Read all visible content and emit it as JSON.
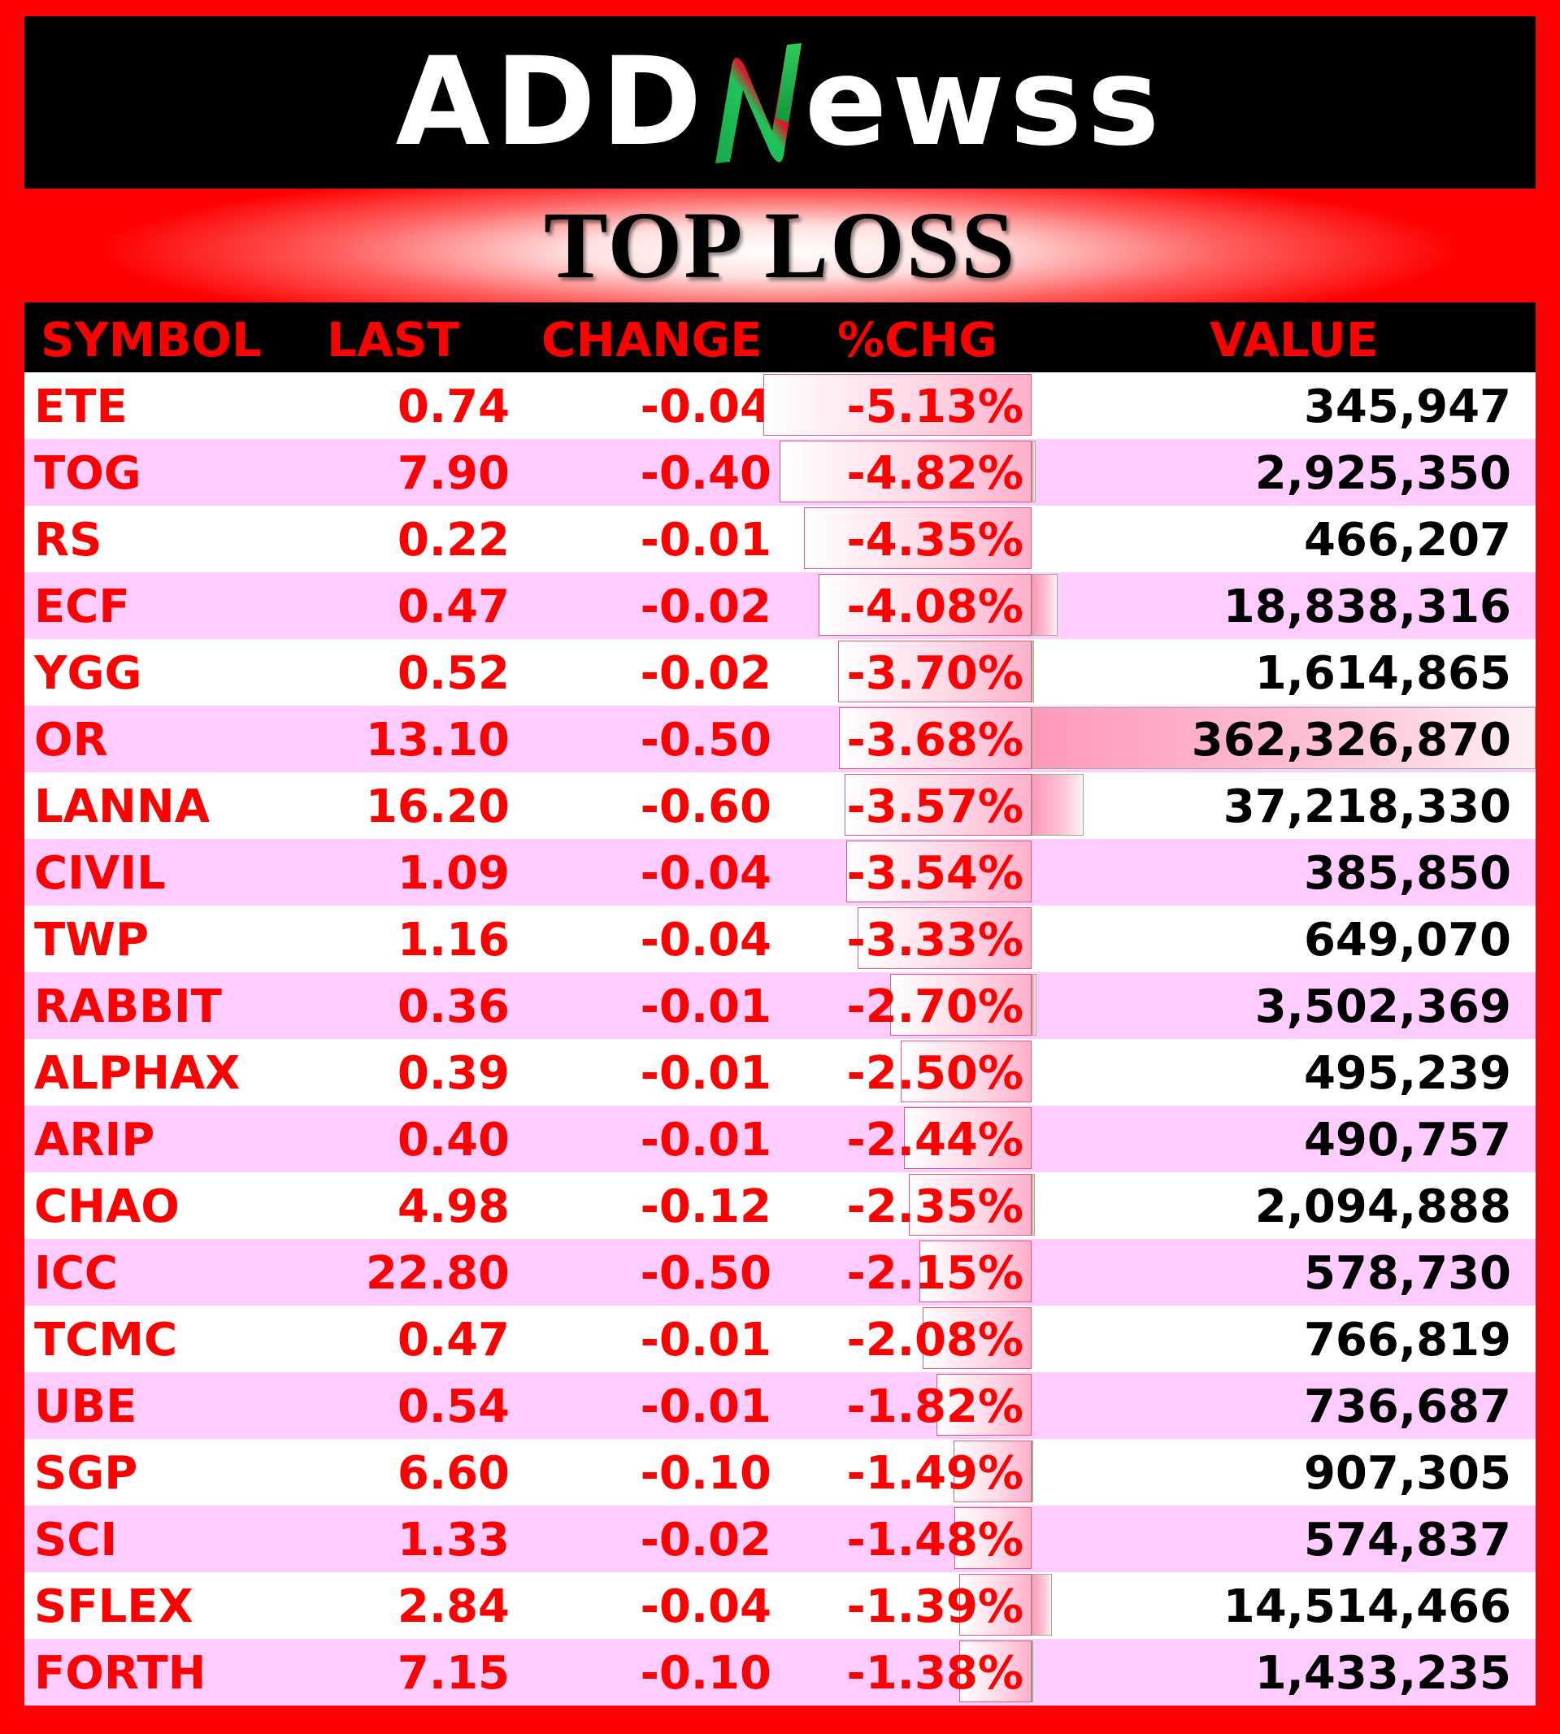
{
  "brand": {
    "logo_left": "ADD",
    "logo_right": "ewss"
  },
  "title": "TOP LOSS",
  "columns": {
    "symbol": "SYMBOL",
    "last": "LAST",
    "change": "CHANGE",
    "pct": "%CHG",
    "value": "VALUE"
  },
  "colors": {
    "frame": "#fe0000",
    "header": "#000000",
    "row_odd": "#ffffff",
    "row_even": "#ffccff",
    "loss_text": "#fe0000",
    "value_text": "#000000"
  },
  "rows": [
    {
      "symbol": "ETE",
      "last": "0.74",
      "change": "-0.04",
      "pct": "-5.13%",
      "value": "345,947",
      "pct_num": 5.13,
      "value_num": 345947
    },
    {
      "symbol": "TOG",
      "last": "7.90",
      "change": "-0.40",
      "pct": "-4.82%",
      "value": "2,925,350",
      "pct_num": 4.82,
      "value_num": 2925350
    },
    {
      "symbol": "RS",
      "last": "0.22",
      "change": "-0.01",
      "pct": "-4.35%",
      "value": "466,207",
      "pct_num": 4.35,
      "value_num": 466207
    },
    {
      "symbol": "ECF",
      "last": "0.47",
      "change": "-0.02",
      "pct": "-4.08%",
      "value": "18,838,316",
      "pct_num": 4.08,
      "value_num": 18838316
    },
    {
      "symbol": "YGG",
      "last": "0.52",
      "change": "-0.02",
      "pct": "-3.70%",
      "value": "1,614,865",
      "pct_num": 3.7,
      "value_num": 1614865
    },
    {
      "symbol": "OR",
      "last": "13.10",
      "change": "-0.50",
      "pct": "-3.68%",
      "value": "362,326,870",
      "pct_num": 3.68,
      "value_num": 362326870
    },
    {
      "symbol": "LANNA",
      "last": "16.20",
      "change": "-0.60",
      "pct": "-3.57%",
      "value": "37,218,330",
      "pct_num": 3.57,
      "value_num": 37218330
    },
    {
      "symbol": "CIVIL",
      "last": "1.09",
      "change": "-0.04",
      "pct": "-3.54%",
      "value": "385,850",
      "pct_num": 3.54,
      "value_num": 385850
    },
    {
      "symbol": "TWP",
      "last": "1.16",
      "change": "-0.04",
      "pct": "-3.33%",
      "value": "649,070",
      "pct_num": 3.33,
      "value_num": 649070
    },
    {
      "symbol": "RABBIT",
      "last": "0.36",
      "change": "-0.01",
      "pct": "-2.70%",
      "value": "3,502,369",
      "pct_num": 2.7,
      "value_num": 3502369
    },
    {
      "symbol": "ALPHAX",
      "last": "0.39",
      "change": "-0.01",
      "pct": "-2.50%",
      "value": "495,239",
      "pct_num": 2.5,
      "value_num": 495239
    },
    {
      "symbol": "ARIP",
      "last": "0.40",
      "change": "-0.01",
      "pct": "-2.44%",
      "value": "490,757",
      "pct_num": 2.44,
      "value_num": 490757
    },
    {
      "symbol": "CHAO",
      "last": "4.98",
      "change": "-0.12",
      "pct": "-2.35%",
      "value": "2,094,888",
      "pct_num": 2.35,
      "value_num": 2094888
    },
    {
      "symbol": "ICC",
      "last": "22.80",
      "change": "-0.50",
      "pct": "-2.15%",
      "value": "578,730",
      "pct_num": 2.15,
      "value_num": 578730
    },
    {
      "symbol": "TCMC",
      "last": "0.47",
      "change": "-0.01",
      "pct": "-2.08%",
      "value": "766,819",
      "pct_num": 2.08,
      "value_num": 766819
    },
    {
      "symbol": "UBE",
      "last": "0.54",
      "change": "-0.01",
      "pct": "-1.82%",
      "value": "736,687",
      "pct_num": 1.82,
      "value_num": 736687
    },
    {
      "symbol": "SGP",
      "last": "6.60",
      "change": "-0.10",
      "pct": "-1.49%",
      "value": "907,305",
      "pct_num": 1.49,
      "value_num": 907305
    },
    {
      "symbol": "SCI",
      "last": "1.33",
      "change": "-0.02",
      "pct": "-1.48%",
      "value": "574,837",
      "pct_num": 1.48,
      "value_num": 574837
    },
    {
      "symbol": "SFLEX",
      "last": "2.84",
      "change": "-0.04",
      "pct": "-1.39%",
      "value": "14,514,466",
      "pct_num": 1.39,
      "value_num": 14514466
    },
    {
      "symbol": "FORTH",
      "last": "7.15",
      "change": "-0.10",
      "pct": "-1.38%",
      "value": "1,433,235",
      "pct_num": 1.38,
      "value_num": 1433235
    }
  ]
}
